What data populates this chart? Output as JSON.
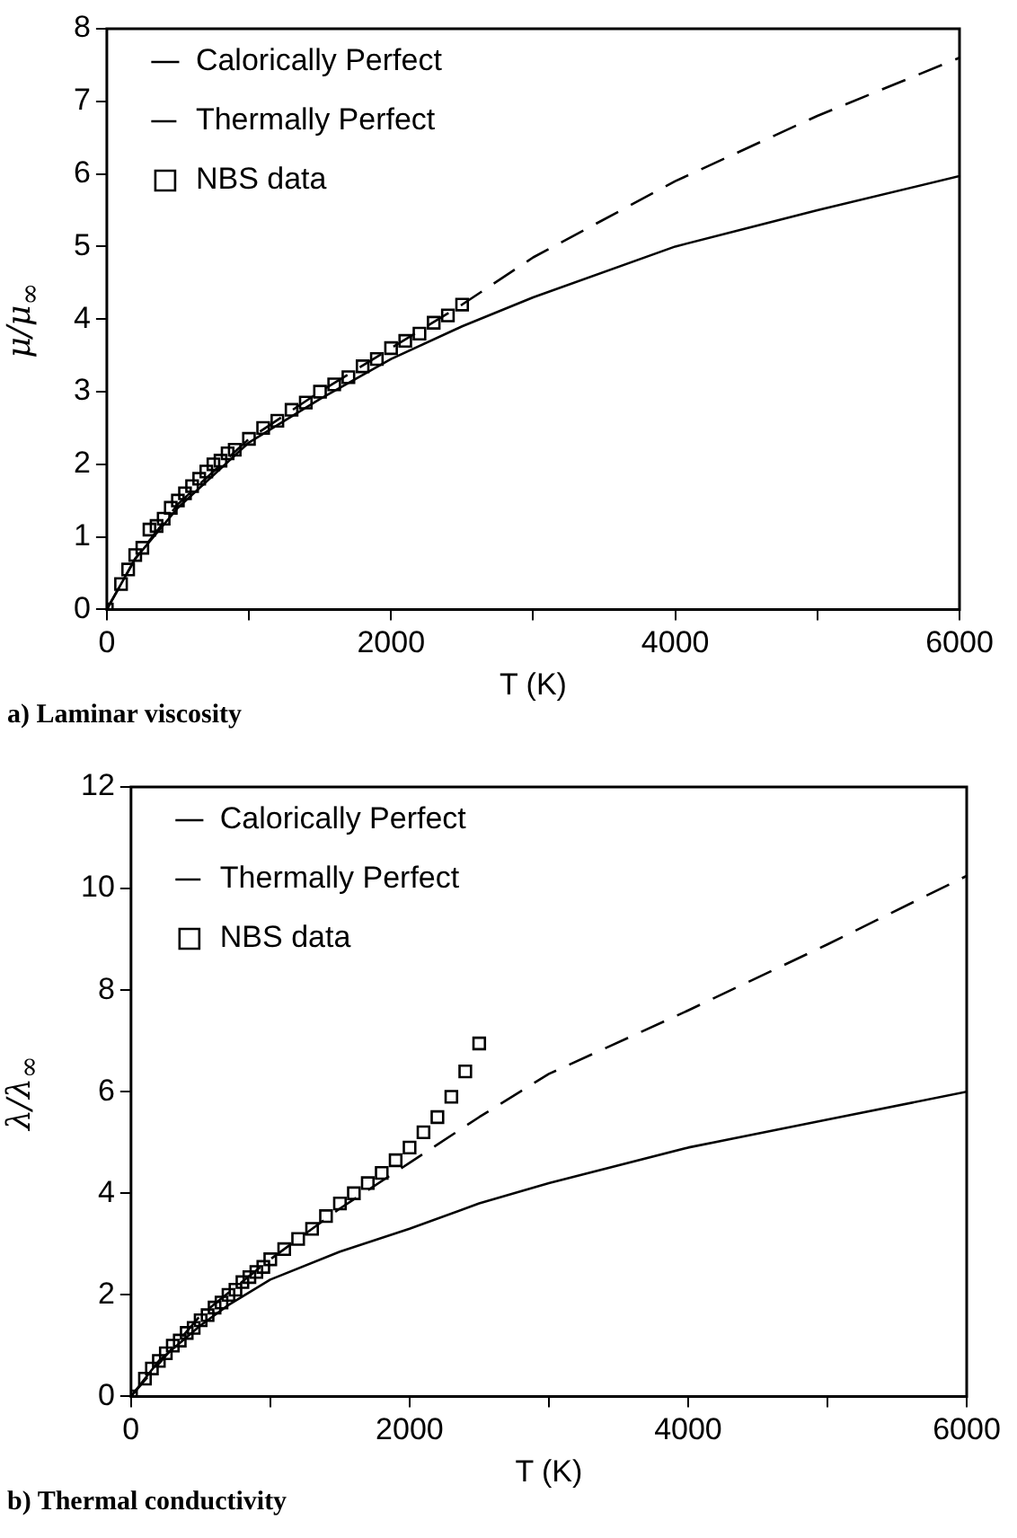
{
  "chart_data": [
    {
      "type": "line",
      "title": "a) Laminar viscosity",
      "xlabel": "T (K)",
      "ylabel": "μ/μ$_{∞}$",
      "xlim": [
        0,
        6000
      ],
      "ylim": [
        0,
        8
      ],
      "xticks": [
        0,
        {
          "value": 1000,
          "label": null
        },
        2000,
        {
          "value": 3000,
          "label": null
        },
        4000,
        {
          "value": 5000,
          "label": null
        },
        6000
      ],
      "yticks": [
        0,
        1,
        2,
        3,
        4,
        5,
        6,
        7,
        8
      ],
      "legend": "top left",
      "series": [
        {
          "name": "Calorically Perfect",
          "color": "#000000",
          "type": "line",
          "line_style": "solid",
          "marker": "none",
          "x": [
            0,
            200,
            500,
            1000,
            1500,
            2000,
            2500,
            3000,
            4000,
            5000,
            6000
          ],
          "values": [
            0,
            0.7,
            1.4,
            2.3,
            2.9,
            3.45,
            3.9,
            4.3,
            5.0,
            5.5,
            5.97
          ]
        },
        {
          "name": "Thermally Perfect",
          "color": "#000000",
          "type": "line",
          "line_style": "dashed",
          "marker": "none",
          "x": [
            0,
            200,
            500,
            1000,
            1500,
            2000,
            2500,
            3000,
            4000,
            5000,
            6000
          ],
          "values": [
            0,
            0.7,
            1.45,
            2.35,
            3.0,
            3.6,
            4.2,
            4.85,
            5.9,
            6.8,
            7.6
          ]
        },
        {
          "name": "NBS data",
          "color": "#000000",
          "type": "scatter",
          "marker": "square",
          "x": [
            0,
            100,
            150,
            200,
            250,
            300,
            350,
            400,
            450,
            500,
            550,
            600,
            650,
            700,
            750,
            800,
            850,
            900,
            1000,
            1100,
            1200,
            1300,
            1400,
            1500,
            1600,
            1700,
            1800,
            1900,
            2000,
            2100,
            2200,
            2300,
            2400,
            2500
          ],
          "values": [
            0,
            0.35,
            0.55,
            0.75,
            0.85,
            1.1,
            1.15,
            1.25,
            1.4,
            1.5,
            1.6,
            1.7,
            1.8,
            1.9,
            2.0,
            2.05,
            2.15,
            2.2,
            2.35,
            2.5,
            2.6,
            2.75,
            2.85,
            3.0,
            3.1,
            3.2,
            3.35,
            3.45,
            3.6,
            3.7,
            3.8,
            3.95,
            4.05,
            4.2
          ]
        }
      ]
    },
    {
      "type": "line",
      "title": "b) Thermal conductivity",
      "xlabel": "T (K)",
      "ylabel": "λ/λ$_{∞}$",
      "xlim": [
        0,
        6000
      ],
      "ylim": [
        0,
        12
      ],
      "xticks": [
        0,
        {
          "value": 1000,
          "label": null
        },
        2000,
        {
          "value": 3000,
          "label": null
        },
        4000,
        {
          "value": 5000,
          "label": null
        },
        6000
      ],
      "yticks": [
        0,
        2,
        4,
        6,
        8,
        10,
        12
      ],
      "legend": "top left",
      "series": [
        {
          "name": "Calorically Perfect",
          "color": "#000000",
          "type": "line",
          "line_style": "solid",
          "marker": "none",
          "x": [
            0,
            200,
            500,
            700,
            1000,
            1500,
            2000,
            2500,
            3000,
            4000,
            5000,
            6000
          ],
          "values": [
            0,
            0.7,
            1.4,
            1.8,
            2.3,
            2.85,
            3.3,
            3.8,
            4.2,
            4.9,
            5.45,
            6.0
          ]
        },
        {
          "name": "Thermally Perfect",
          "color": "#000000",
          "type": "line",
          "line_style": "dashed",
          "marker": "none",
          "x": [
            0,
            500,
            1000,
            1500,
            2000,
            2500,
            3000,
            4000,
            5000,
            6000
          ],
          "values": [
            0,
            1.6,
            2.7,
            3.7,
            4.6,
            5.5,
            6.35,
            7.6,
            8.9,
            10.25
          ]
        },
        {
          "name": "NBS data",
          "color": "#000000",
          "type": "scatter",
          "marker": "square",
          "x": [
            0,
            100,
            150,
            200,
            250,
            300,
            350,
            400,
            450,
            500,
            550,
            600,
            650,
            700,
            750,
            800,
            850,
            900,
            950,
            1000,
            1100,
            1200,
            1300,
            1400,
            1500,
            1600,
            1700,
            1800,
            1900,
            2000,
            2100,
            2200,
            2300,
            2400,
            2500
          ],
          "values": [
            0,
            0.35,
            0.55,
            0.7,
            0.85,
            1.0,
            1.1,
            1.25,
            1.35,
            1.5,
            1.6,
            1.75,
            1.85,
            2.0,
            2.1,
            2.25,
            2.35,
            2.45,
            2.55,
            2.7,
            2.9,
            3.1,
            3.3,
            3.55,
            3.8,
            4.0,
            4.2,
            4.4,
            4.65,
            4.9,
            5.2,
            5.5,
            5.9,
            6.4,
            6.95
          ]
        }
      ]
    }
  ]
}
